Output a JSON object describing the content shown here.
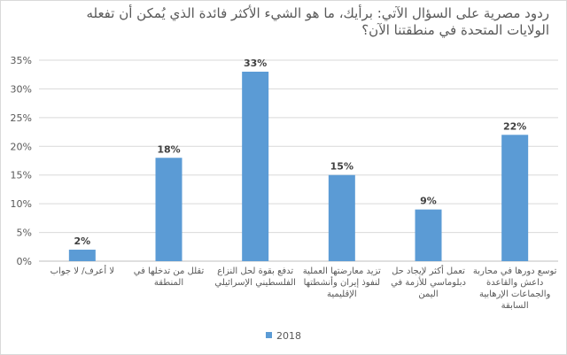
{
  "chart_data": {
    "type": "bar",
    "title": "ردود مصرية على السؤال الآتي: برأيك، ما هو الشيء الأكثر فائدة الذي يُمكن أن تفعله الولايات المتحدة في منطقتنا الآن؟",
    "categories": [
      "لا أعرف/ لا جواب",
      "تقلل من تدخلها في المنطقة",
      "تدفع بقوة لحل النزاع الفلسطيني الإسرائيلي",
      "تزيد معارضتها العملية لنفوذ إيران وأنشطتها الإقليمية",
      "تعمل أكثر لإيجاد حل دبلوماسي للأزمة في اليمن",
      "توسع دورها في محاربة داعش والقاعدة والجماعات الإرهابية السابقة"
    ],
    "category_lines": [
      [
        "لا أعرف/ لا جواب"
      ],
      [
        "تقلل من تدخلها في",
        "المنطقة"
      ],
      [
        "تدفع بقوة لحل النزاع",
        "الفلسطيني الإسرائيلي"
      ],
      [
        "تزيد معارضتها العملية",
        "لنفوذ إيران وأنشطتها",
        "الإقليمية"
      ],
      [
        "تعمل أكثر لإيجاد حل",
        "دبلوماسي للأزمة في",
        "اليمن"
      ],
      [
        "توسع دورها في محاربة",
        "داعش والقاعدة",
        "والجماعات الإرهابية",
        "السابقة"
      ]
    ],
    "series": [
      {
        "name": "2018",
        "values": [
          2,
          18,
          33,
          15,
          9,
          22
        ],
        "color": "#5b9bd5"
      }
    ],
    "data_labels": [
      "2%",
      "18%",
      "33%",
      "15%",
      "9%",
      "22%"
    ],
    "ylim": [
      0,
      35
    ],
    "yticks": [
      0,
      5,
      10,
      15,
      20,
      25,
      30,
      35
    ],
    "ytick_labels": [
      "0%",
      "5%",
      "10%",
      "15%",
      "20%",
      "25%",
      "30%",
      "35%"
    ],
    "grid": true,
    "legend_position": "bottom"
  }
}
